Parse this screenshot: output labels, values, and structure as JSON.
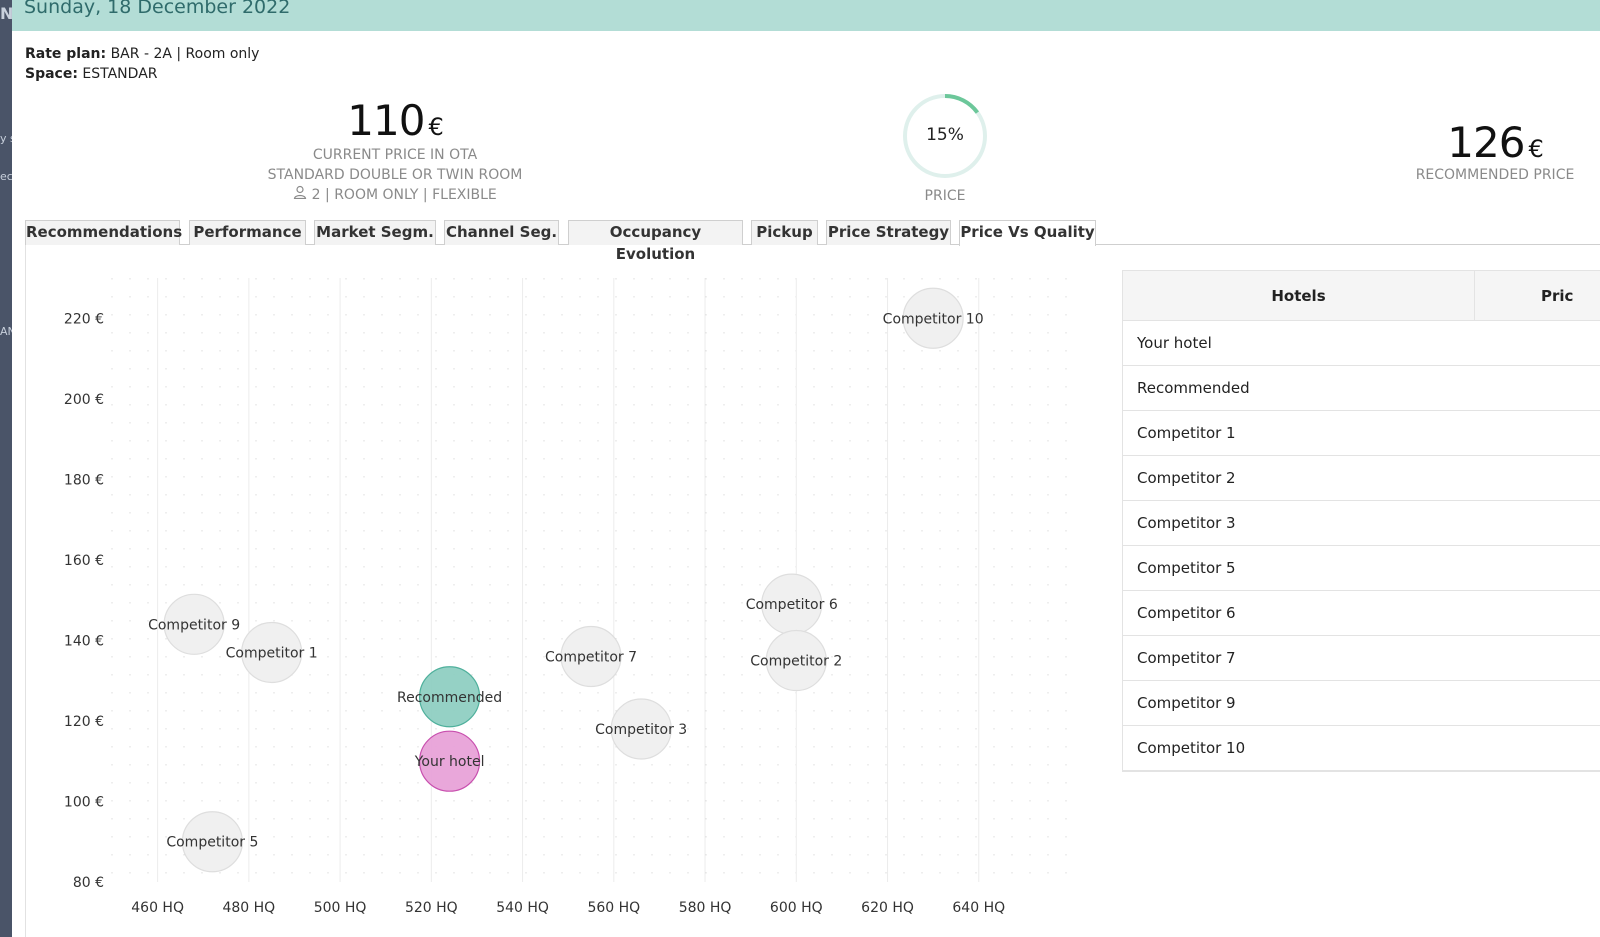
{
  "header": {
    "date": "Sunday, 18 December 2022"
  },
  "left_strip": {
    "fragments": [
      "N",
      "y s",
      "ec",
      "AN"
    ]
  },
  "info": {
    "rate_plan_label": "Rate plan:",
    "rate_plan_value": "BAR - 2A | Room only",
    "space_label": "Space:",
    "space_value": "ESTANDAR"
  },
  "kpi_current": {
    "value": "110",
    "currency": "€",
    "label": "CURRENT PRICE IN OTA",
    "room": "STANDARD DOUBLE OR TWIN ROOM",
    "details": "2 | ROOM ONLY | FLEXIBLE"
  },
  "kpi_gauge": {
    "percent": 15,
    "percent_text": "15%",
    "label": "PRICE"
  },
  "kpi_recommended": {
    "value": "126",
    "currency": "€",
    "label": "RECOMMENDED PRICE"
  },
  "tabs": [
    {
      "label": "Recommendations"
    },
    {
      "label": "Performance"
    },
    {
      "label": "Market Segm."
    },
    {
      "label": "Channel Seg."
    },
    {
      "label": "Occupancy Evolution"
    },
    {
      "label": "Pickup"
    },
    {
      "label": "Price Strategy"
    },
    {
      "label": "Price Vs Quality"
    }
  ],
  "active_tab": "Price Vs Quality",
  "colors": {
    "accent": "#b3ddd6",
    "recommended_fill": "#8fcfc2",
    "your_hotel_fill": "#e8a2d8",
    "competitor_fill": "#efefef"
  },
  "chart_data": {
    "type": "scatter",
    "xlim": [
      450,
      660
    ],
    "ylim": [
      80,
      230
    ],
    "x_ticks": [
      460,
      480,
      500,
      520,
      540,
      560,
      580,
      600,
      620,
      640
    ],
    "x_tick_labels": [
      "460 HQ",
      "480 HQ",
      "500 HQ",
      "520 HQ",
      "540 HQ",
      "560 HQ",
      "580 HQ",
      "600 HQ",
      "620 HQ",
      "640 HQ"
    ],
    "y_ticks": [
      80,
      100,
      120,
      140,
      160,
      180,
      200,
      220
    ],
    "y_tick_labels": [
      "80 €",
      "100 €",
      "120 €",
      "140 €",
      "160 €",
      "180 €",
      "200 €",
      "220 €"
    ],
    "grid": true,
    "points": [
      {
        "name": "Competitor 10",
        "x": 630,
        "y": 220,
        "kind": "competitor"
      },
      {
        "name": "Competitor 6",
        "x": 599,
        "y": 149,
        "kind": "competitor"
      },
      {
        "name": "Competitor 9",
        "x": 468,
        "y": 144,
        "kind": "competitor"
      },
      {
        "name": "Competitor 1",
        "x": 485,
        "y": 137,
        "kind": "competitor"
      },
      {
        "name": "Competitor 7",
        "x": 555,
        "y": 136,
        "kind": "competitor"
      },
      {
        "name": "Competitor 2",
        "x": 600,
        "y": 135,
        "kind": "competitor"
      },
      {
        "name": "Recommended",
        "x": 524,
        "y": 126,
        "kind": "recommended"
      },
      {
        "name": "Competitor 3",
        "x": 566,
        "y": 118,
        "kind": "competitor"
      },
      {
        "name": "Your hotel",
        "x": 524,
        "y": 110,
        "kind": "your_hotel"
      },
      {
        "name": "Competitor 5",
        "x": 472,
        "y": 90,
        "kind": "competitor"
      }
    ]
  },
  "hotels_table": {
    "col_hotels": "Hotels",
    "col_price": "Pric",
    "rows": [
      "Your hotel",
      "Recommended",
      "Competitor 1",
      "Competitor 2",
      "Competitor 3",
      "Competitor 5",
      "Competitor 6",
      "Competitor 7",
      "Competitor 9",
      "Competitor 10"
    ]
  }
}
